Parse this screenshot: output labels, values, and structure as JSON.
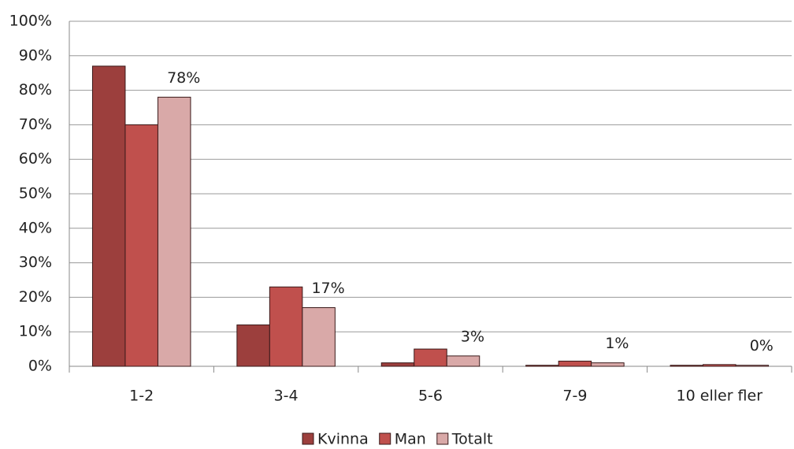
{
  "chart_data": {
    "type": "bar",
    "categories": [
      "1-2",
      "3-4",
      "5-6",
      "7-9",
      "10 eller fler"
    ],
    "series": [
      {
        "name": "Kvinna",
        "color": "#9c3f3d",
        "values": [
          87,
          12,
          1,
          0.3,
          0.3
        ]
      },
      {
        "name": "Man",
        "color": "#c0504d",
        "values": [
          70,
          23,
          5,
          1.5,
          0.5
        ]
      },
      {
        "name": "Totalt",
        "color": "#d9a9a8",
        "values": [
          78,
          17,
          3,
          1,
          0.3
        ],
        "value_labels": [
          "78%",
          "17%",
          "3%",
          "1%",
          "0%"
        ]
      }
    ],
    "ylim": [
      0,
      100
    ],
    "yticks": [
      {
        "value": 0,
        "label": "0%"
      },
      {
        "value": 10,
        "label": "10%"
      },
      {
        "value": 20,
        "label": "20%"
      },
      {
        "value": 30,
        "label": "30%"
      },
      {
        "value": 40,
        "label": "40%"
      },
      {
        "value": 50,
        "label": "50%"
      },
      {
        "value": 60,
        "label": "60%"
      },
      {
        "value": 70,
        "label": "70%"
      },
      {
        "value": 80,
        "label": "80%"
      },
      {
        "value": 90,
        "label": "90%"
      },
      {
        "value": 100,
        "label": "100%"
      }
    ],
    "grid": true,
    "legend": "bottom"
  }
}
